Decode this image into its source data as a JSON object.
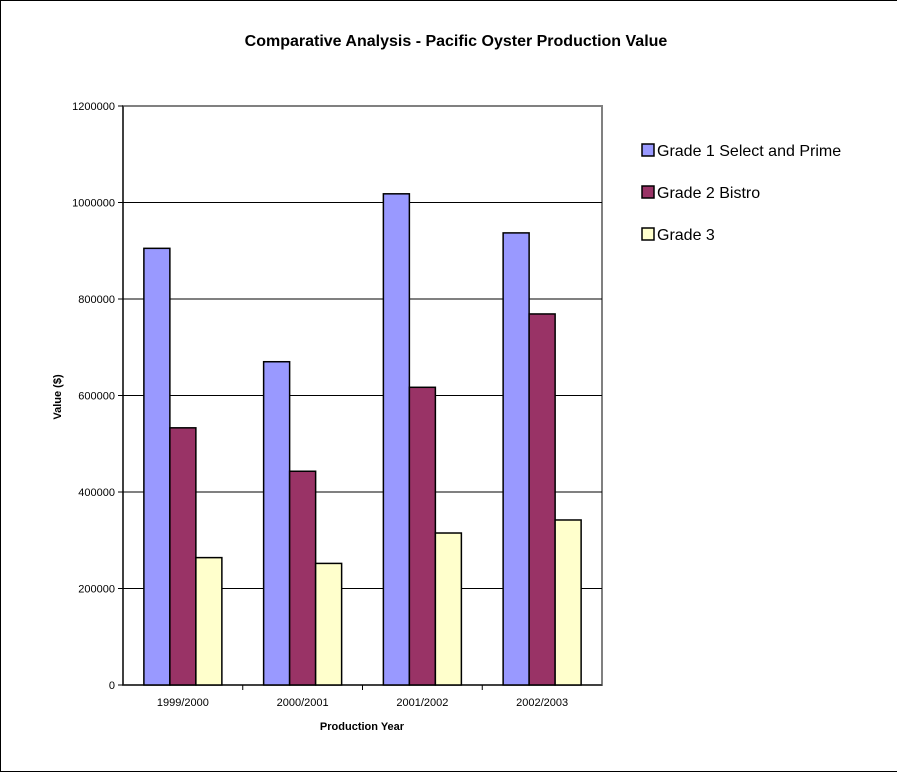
{
  "chart_data": {
    "type": "bar",
    "title": "Comparative Analysis - Pacific Oyster Production Value",
    "xlabel": "Production Year",
    "ylabel": "Value ($)",
    "ylim": [
      0,
      1200000
    ],
    "yticks": [
      "0",
      "200000",
      "400000",
      "600000",
      "800000",
      "1000000",
      "1200000"
    ],
    "ytick_values": [
      0,
      200000,
      400000,
      600000,
      800000,
      1000000,
      1200000
    ],
    "categories": [
      "1999/2000",
      "2000/2001",
      "2001/2002",
      "2002/2003"
    ],
    "grid": true,
    "legend_position": "right",
    "series": [
      {
        "name": "Grade 1 Select and Prime",
        "color": "#9999ff",
        "values": [
          905000,
          670000,
          1018000,
          937000
        ]
      },
      {
        "name": "Grade 2 Bistro",
        "color": "#993366",
        "values": [
          533000,
          443000,
          617000,
          769000
        ]
      },
      {
        "name": "Grade 3",
        "color": "#ffffcc",
        "values": [
          264000,
          252000,
          315000,
          342000
        ]
      }
    ]
  }
}
